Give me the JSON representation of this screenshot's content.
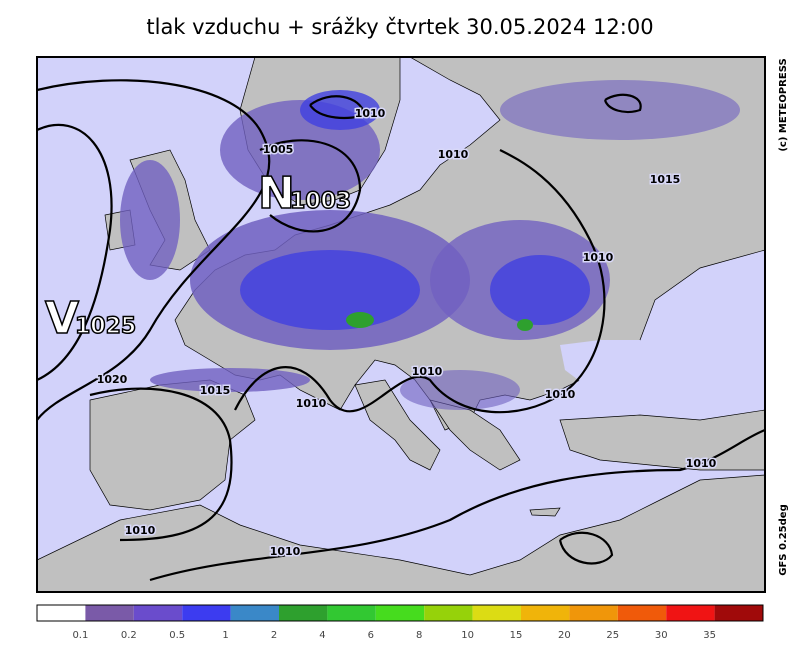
{
  "header": {
    "title": "tlak vzduchu + srážky čtvrtek 30.05.2024 12:00"
  },
  "map": {
    "pressure_centers": [
      {
        "letter": "N",
        "value": "1003"
      },
      {
        "letter": "V",
        "value": "1025"
      }
    ],
    "isobar_labels": [
      "1010",
      "1005",
      "1010",
      "1015",
      "1010",
      "1020",
      "1015",
      "1010",
      "1010",
      "1010",
      "1010",
      "1010",
      "1010"
    ]
  },
  "side": {
    "copyright": "(c) METEOPRESS",
    "model": "GFS 0.25deg"
  },
  "legend": {
    "colors": [
      "#ffffff",
      "#7a5aa8",
      "#6a4ccc",
      "#3c3cf0",
      "#3a88c8",
      "#2ea02e",
      "#32c832",
      "#46dc1e",
      "#96d20a",
      "#dcdc14",
      "#f0b40a",
      "#f0960a",
      "#f05a0a",
      "#f01414",
      "#a00a0a"
    ],
    "ticks": [
      0.1,
      0.2,
      0.5,
      1,
      2,
      4,
      6,
      8,
      10,
      15,
      20,
      25,
      30,
      35
    ]
  }
}
